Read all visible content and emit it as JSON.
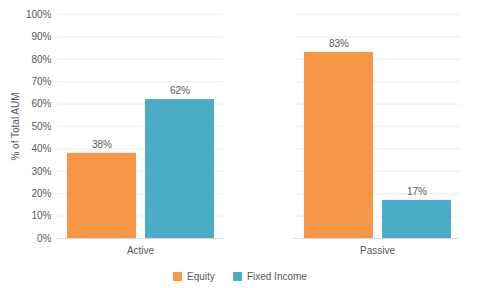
{
  "chart_data": {
    "type": "bar",
    "categories": [
      "Active",
      "Passive"
    ],
    "series": [
      {
        "name": "Equity",
        "color": "#f79646",
        "values": [
          38,
          83
        ],
        "value_labels": [
          "38%",
          "83%"
        ]
      },
      {
        "name": "Fixed Income",
        "color": "#4bacc6",
        "values": [
          62,
          17
        ],
        "value_labels": [
          "62%",
          "17%"
        ]
      }
    ],
    "y_label": "% of Total AUM",
    "ylim": [
      0,
      100
    ],
    "yticks": [
      {
        "value": 0,
        "label": "0%"
      },
      {
        "value": 10,
        "label": "10%"
      },
      {
        "value": 20,
        "label": "20%"
      },
      {
        "value": 30,
        "label": "30%"
      },
      {
        "value": 40,
        "label": "40%"
      },
      {
        "value": 50,
        "label": "50%"
      },
      {
        "value": 60,
        "label": "60%"
      },
      {
        "value": 70,
        "label": "70%"
      },
      {
        "value": 80,
        "label": "80%"
      },
      {
        "value": 90,
        "label": "90%"
      },
      {
        "value": 100,
        "label": "100%"
      }
    ],
    "grid": true,
    "legend": "bottom",
    "data_labels": true
  }
}
